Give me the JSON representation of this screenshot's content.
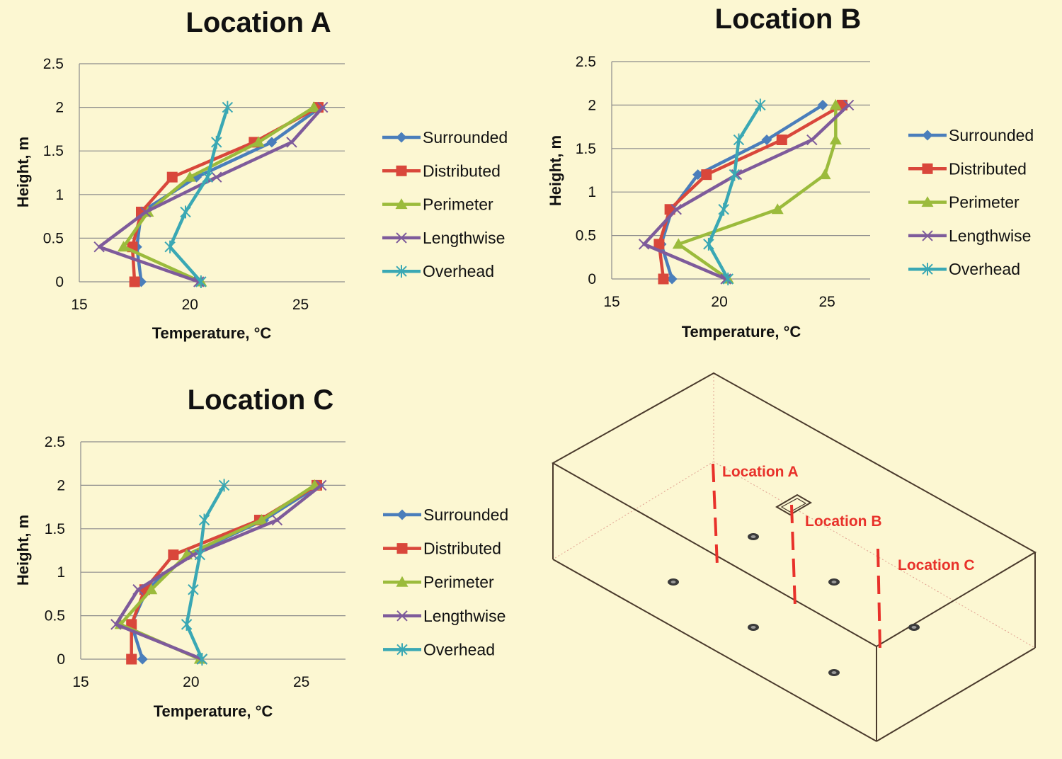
{
  "chart_data": [
    {
      "type": "line",
      "title": "Location A",
      "xlabel": "Temperature, °C",
      "ylabel": "Height, m",
      "xlim": [
        15,
        27
      ],
      "ylim": [
        0,
        2.5
      ],
      "xticks": [
        "15",
        "20",
        "25"
      ],
      "yticks": [
        "0",
        "0.5",
        "1",
        "1.5",
        "2",
        "2.5"
      ],
      "legend_position": "right",
      "series": [
        {
          "name": "Surrounded",
          "color": "#4a7ebb",
          "marker": "diamond",
          "x": [
            17.8,
            17.6,
            17.8,
            20.3,
            23.7,
            25.9
          ],
          "y": [
            0,
            0.4,
            0.8,
            1.2,
            1.6,
            2.0
          ]
        },
        {
          "name": "Distributed",
          "color": "#d9473b",
          "marker": "square",
          "x": [
            17.5,
            17.4,
            17.8,
            19.2,
            22.9,
            25.8
          ],
          "y": [
            0,
            0.4,
            0.8,
            1.2,
            1.6,
            2.0
          ]
        },
        {
          "name": "Perimeter",
          "color": "#9bbb3c",
          "marker": "triangle",
          "x": [
            20.5,
            17.0,
            18.1,
            20.0,
            23.1,
            25.6
          ],
          "y": [
            0,
            0.4,
            0.8,
            1.2,
            1.6,
            2.0
          ]
        },
        {
          "name": "Lengthwise",
          "color": "#7e5b9b",
          "marker": "x",
          "x": [
            20.4,
            15.9,
            18.0,
            21.2,
            24.6,
            26.0
          ],
          "y": [
            0,
            0.4,
            0.8,
            1.2,
            1.6,
            2.0
          ]
        },
        {
          "name": "Overhead",
          "color": "#3aa8b4",
          "marker": "star",
          "x": [
            20.5,
            19.1,
            19.8,
            20.8,
            21.2,
            21.7
          ],
          "y": [
            0,
            0.4,
            0.8,
            1.2,
            1.6,
            2.0
          ]
        }
      ]
    },
    {
      "type": "line",
      "title": "Location B",
      "xlabel": "Temperature, °C",
      "ylabel": "Height, m",
      "xlim": [
        15,
        27
      ],
      "ylim": [
        0,
        2.5
      ],
      "xticks": [
        "15",
        "20",
        "25"
      ],
      "yticks": [
        "0",
        "0.5",
        "1",
        "1.5",
        "2",
        "2.5"
      ],
      "legend_position": "right",
      "series": [
        {
          "name": "Surrounded",
          "color": "#4a7ebb",
          "marker": "diamond",
          "x": [
            17.8,
            17.3,
            17.8,
            19.0,
            22.2,
            24.8
          ],
          "y": [
            0,
            0.4,
            0.8,
            1.2,
            1.6,
            2.0
          ]
        },
        {
          "name": "Distributed",
          "color": "#d9473b",
          "marker": "square",
          "x": [
            17.4,
            17.2,
            17.7,
            19.4,
            22.9,
            25.7
          ],
          "y": [
            0,
            0.4,
            0.8,
            1.2,
            1.6,
            2.0
          ]
        },
        {
          "name": "Perimeter",
          "color": "#9bbb3c",
          "marker": "triangle",
          "x": [
            20.4,
            18.1,
            22.7,
            24.9,
            25.4,
            25.4
          ],
          "y": [
            0,
            0.4,
            0.8,
            1.2,
            1.6,
            2.0
          ]
        },
        {
          "name": "Lengthwise",
          "color": "#7e5b9b",
          "marker": "x",
          "x": [
            20.3,
            16.5,
            18.0,
            20.8,
            24.3,
            26.0
          ],
          "y": [
            0,
            0.4,
            0.8,
            1.2,
            1.6,
            2.0
          ]
        },
        {
          "name": "Overhead",
          "color": "#3aa8b4",
          "marker": "star",
          "x": [
            20.4,
            19.5,
            20.2,
            20.7,
            20.9,
            21.9
          ],
          "y": [
            0,
            0.4,
            0.8,
            1.2,
            1.6,
            2.0
          ]
        }
      ]
    },
    {
      "type": "line",
      "title": "Location C",
      "xlabel": "Temperature, °C",
      "ylabel": "Height, m",
      "xlim": [
        15,
        27
      ],
      "ylim": [
        0,
        2.5
      ],
      "xticks": [
        "15",
        "20",
        "25"
      ],
      "yticks": [
        "0",
        "0.5",
        "1",
        "1.5",
        "2",
        "2.5"
      ],
      "legend_position": "right",
      "series": [
        {
          "name": "Surrounded",
          "color": "#4a7ebb",
          "marker": "diamond",
          "x": [
            17.8,
            17.3,
            18.0,
            19.9,
            23.3,
            25.8
          ],
          "y": [
            0,
            0.4,
            0.8,
            1.2,
            1.6,
            2.0
          ]
        },
        {
          "name": "Distributed",
          "color": "#d9473b",
          "marker": "square",
          "x": [
            17.3,
            17.3,
            17.9,
            19.2,
            23.1,
            25.7
          ],
          "y": [
            0,
            0.4,
            0.8,
            1.2,
            1.6,
            2.0
          ]
        },
        {
          "name": "Perimeter",
          "color": "#9bbb3c",
          "marker": "triangle",
          "x": [
            20.4,
            16.8,
            18.2,
            19.8,
            23.2,
            25.6
          ],
          "y": [
            0,
            0.4,
            0.8,
            1.2,
            1.6,
            2.0
          ]
        },
        {
          "name": "Lengthwise",
          "color": "#7e5b9b",
          "marker": "x",
          "x": [
            20.5,
            16.6,
            17.6,
            20.1,
            23.9,
            25.9
          ],
          "y": [
            0,
            0.4,
            0.8,
            1.2,
            1.6,
            2.0
          ]
        },
        {
          "name": "Overhead",
          "color": "#3aa8b4",
          "marker": "star",
          "x": [
            20.5,
            19.8,
            20.1,
            20.4,
            20.6,
            21.5
          ],
          "y": [
            0,
            0.4,
            0.8,
            1.2,
            1.6,
            2.0
          ]
        }
      ]
    }
  ],
  "room_diagram": {
    "labels": [
      "Location A",
      "Location B",
      "Location C"
    ],
    "label_color": "#e8312a",
    "outline_color": "#4a3a2c",
    "hidden_edge_color": "#e0a090"
  }
}
